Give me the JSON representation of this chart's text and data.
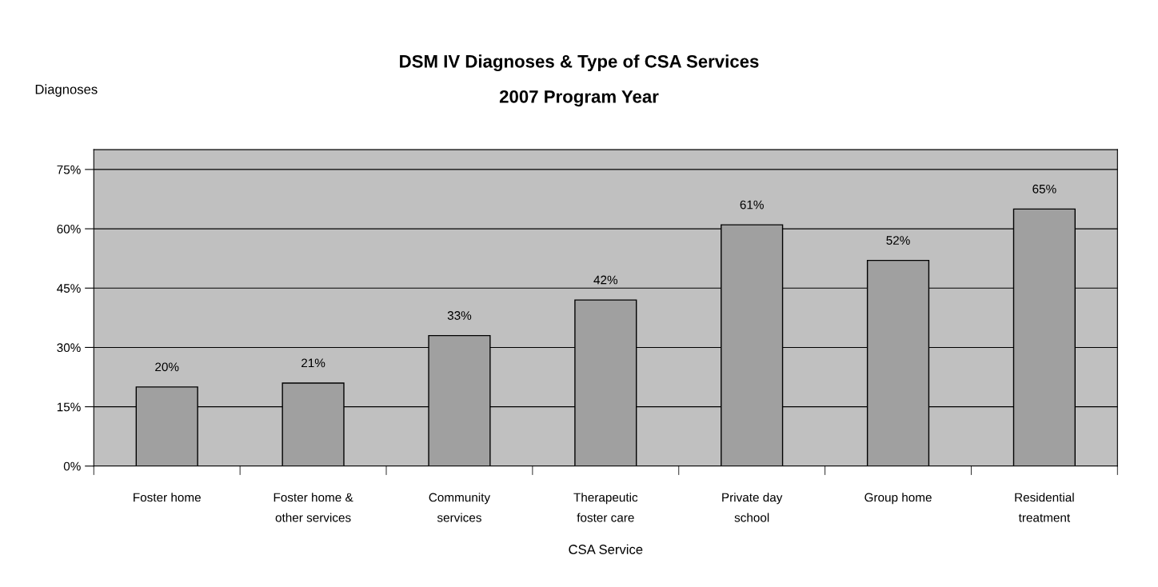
{
  "chart_data": {
    "type": "bar",
    "title": "DSM IV Diagnoses & Type of CSA Services",
    "subtitle": "2007 Program Year",
    "xlabel": "CSA Service",
    "ylabel": "Diagnoses",
    "categories": [
      "Foster home",
      "Foster home &\nother services",
      "Community\nservices",
      "Therapeutic\nfoster care",
      "Private day\nschool",
      "Group home",
      "Residential\ntreatment"
    ],
    "values": [
      20,
      21,
      33,
      42,
      61,
      52,
      65
    ],
    "value_labels": [
      "20%",
      "21%",
      "33%",
      "42%",
      "61%",
      "52%",
      "65%"
    ],
    "color": "#a0a0a0",
    "ylim": [
      0,
      80
    ],
    "yticks": [
      {
        "value": 0,
        "label": "0%"
      },
      {
        "value": 15,
        "label": "15%"
      },
      {
        "value": 30,
        "label": "30%"
      },
      {
        "value": 45,
        "label": "45%"
      },
      {
        "value": 60,
        "label": "60%"
      },
      {
        "value": 75,
        "label": "75%"
      }
    ],
    "grid": "y",
    "legend": false
  }
}
